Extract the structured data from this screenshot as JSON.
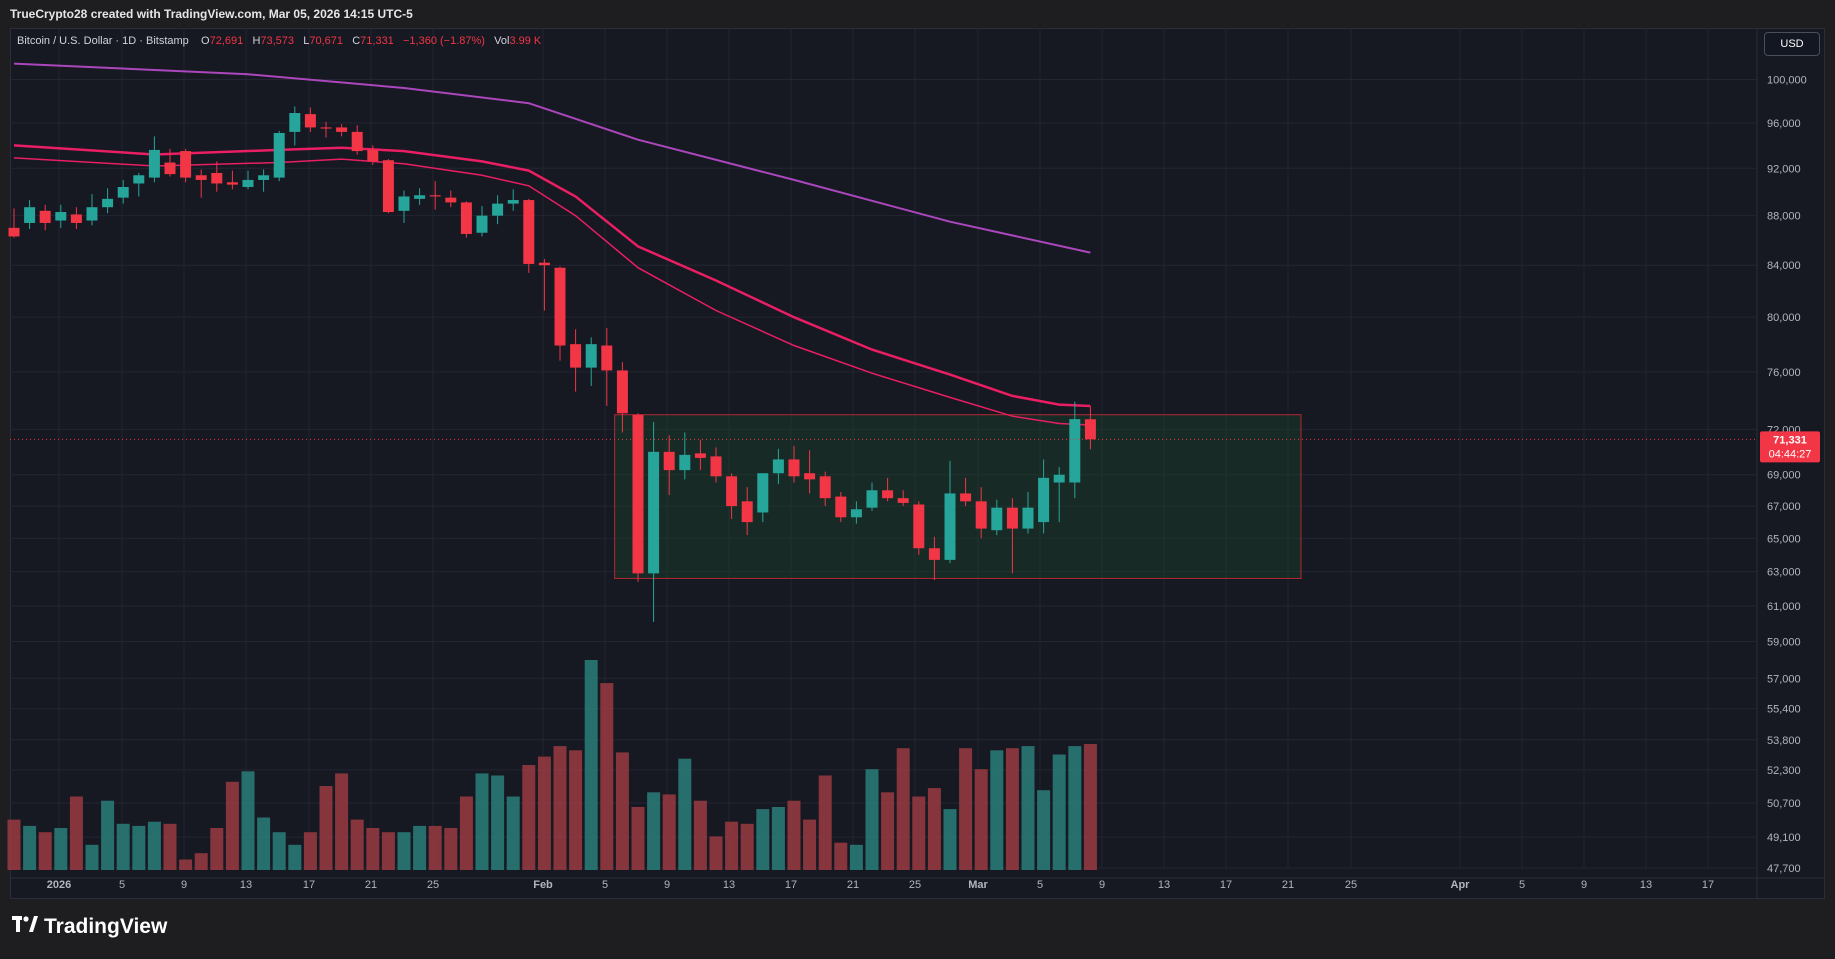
{
  "header": {
    "attribution": "TrueCrypto28 created with TradingView.com, Mar 05, 2026 14:15 UTC-5"
  },
  "legend": {
    "symbol": "Bitcoin / U.S. Dollar · 1D · Bitstamp",
    "o_label": "O",
    "o_value": "72,691",
    "h_label": "H",
    "h_value": "73,573",
    "l_label": "L",
    "l_value": "70,671",
    "c_label": "C",
    "c_value": "71,331",
    "change": "−1,360 (−1.87%)",
    "vol_label": "Vol",
    "vol_value": "3.99 K"
  },
  "currency_button": "USD",
  "footer": {
    "brand": "TradingView",
    "logo_icon": "tradingview-logo-icon"
  },
  "colors": {
    "up": "#26a69a",
    "down": "#f23645",
    "background": "#161822",
    "ema_fast": "#e91e63",
    "ema_slow": "#ab47bc",
    "box_fill": "#1c3a2a",
    "box_border": "#b22833"
  },
  "chart_data": {
    "type": "candlestick",
    "timeframe": "1D",
    "y_scale": "log",
    "ylim": [
      47700,
      103000
    ],
    "grid": true,
    "price_ticks": [
      "100,000",
      "96,000",
      "92,000",
      "88,000",
      "84,000",
      "80,000",
      "76,000",
      "72,000",
      "69,000",
      "67,000",
      "65,000",
      "63,000",
      "61,000",
      "59,000",
      "57,000",
      "55,400",
      "53,800",
      "52,300",
      "50,700",
      "49,100",
      "47,700"
    ],
    "date_ticks": [
      "2026",
      "5",
      "9",
      "13",
      "17",
      "21",
      "25",
      "Feb",
      "5",
      "9",
      "13",
      "17",
      "21",
      "25",
      "Mar",
      "5",
      "9",
      "13",
      "17",
      "21",
      "25",
      "Apr",
      "5",
      "9",
      "13",
      "17"
    ],
    "last_price": {
      "value": "71,331",
      "countdown": "04:44:27",
      "price": 71331
    },
    "candles": [
      {
        "o": 87000,
        "h": 88600,
        "l": 86200,
        "c": 86300
      },
      {
        "o": 87400,
        "h": 89300,
        "l": 86900,
        "c": 88700
      },
      {
        "o": 88400,
        "h": 88900,
        "l": 86800,
        "c": 87400
      },
      {
        "o": 87600,
        "h": 88900,
        "l": 87000,
        "c": 88300
      },
      {
        "o": 88100,
        "h": 88700,
        "l": 86900,
        "c": 87400
      },
      {
        "o": 87600,
        "h": 89800,
        "l": 87200,
        "c": 88700
      },
      {
        "o": 88700,
        "h": 90300,
        "l": 88200,
        "c": 89400
      },
      {
        "o": 89500,
        "h": 91000,
        "l": 89000,
        "c": 90400
      },
      {
        "o": 90700,
        "h": 91600,
        "l": 89600,
        "c": 91400
      },
      {
        "o": 91200,
        "h": 94800,
        "l": 90800,
        "c": 93600
      },
      {
        "o": 92500,
        "h": 93700,
        "l": 91300,
        "c": 91500
      },
      {
        "o": 93500,
        "h": 93700,
        "l": 90800,
        "c": 91200
      },
      {
        "o": 91400,
        "h": 91900,
        "l": 89500,
        "c": 91000
      },
      {
        "o": 91600,
        "h": 92600,
        "l": 90000,
        "c": 90700
      },
      {
        "o": 90800,
        "h": 91800,
        "l": 90200,
        "c": 90600
      },
      {
        "o": 90400,
        "h": 91800,
        "l": 90200,
        "c": 91000
      },
      {
        "o": 91000,
        "h": 91900,
        "l": 90000,
        "c": 91400
      },
      {
        "o": 91200,
        "h": 95300,
        "l": 90900,
        "c": 95100
      },
      {
        "o": 95200,
        "h": 97500,
        "l": 94000,
        "c": 96900
      },
      {
        "o": 96800,
        "h": 97400,
        "l": 95200,
        "c": 95600
      },
      {
        "o": 95600,
        "h": 96100,
        "l": 94700,
        "c": 95500
      },
      {
        "o": 95600,
        "h": 95900,
        "l": 94800,
        "c": 95200
      },
      {
        "o": 95200,
        "h": 95800,
        "l": 93200,
        "c": 93500
      },
      {
        "o": 93600,
        "h": 94000,
        "l": 92300,
        "c": 92600
      },
      {
        "o": 92700,
        "h": 92800,
        "l": 88200,
        "c": 88300
      },
      {
        "o": 88400,
        "h": 90100,
        "l": 87400,
        "c": 89600
      },
      {
        "o": 89400,
        "h": 90300,
        "l": 88900,
        "c": 89700
      },
      {
        "o": 89700,
        "h": 90900,
        "l": 88500,
        "c": 89600
      },
      {
        "o": 89500,
        "h": 90100,
        "l": 88700,
        "c": 89100
      },
      {
        "o": 89100,
        "h": 89200,
        "l": 86200,
        "c": 86500
      },
      {
        "o": 86600,
        "h": 88800,
        "l": 86300,
        "c": 88000
      },
      {
        "o": 88000,
        "h": 89700,
        "l": 87300,
        "c": 89000
      },
      {
        "o": 89000,
        "h": 90200,
        "l": 88400,
        "c": 89300
      },
      {
        "o": 89300,
        "h": 89400,
        "l": 83400,
        "c": 84100
      },
      {
        "o": 84200,
        "h": 84500,
        "l": 80500,
        "c": 84000
      },
      {
        "o": 83800,
        "h": 83900,
        "l": 76800,
        "c": 77900
      },
      {
        "o": 78000,
        "h": 79100,
        "l": 74600,
        "c": 76300
      },
      {
        "o": 76300,
        "h": 78500,
        "l": 75000,
        "c": 78000
      },
      {
        "o": 77900,
        "h": 79200,
        "l": 73600,
        "c": 76100
      },
      {
        "o": 76100,
        "h": 76700,
        "l": 71800,
        "c": 73100
      },
      {
        "o": 73000,
        "h": 73100,
        "l": 62400,
        "c": 62900
      },
      {
        "o": 62900,
        "h": 72500,
        "l": 60100,
        "c": 70500
      },
      {
        "o": 70500,
        "h": 71600,
        "l": 67700,
        "c": 69300
      },
      {
        "o": 69300,
        "h": 71800,
        "l": 68700,
        "c": 70300
      },
      {
        "o": 70400,
        "h": 71300,
        "l": 69300,
        "c": 70100
      },
      {
        "o": 70200,
        "h": 70800,
        "l": 68500,
        "c": 68900
      },
      {
        "o": 68900,
        "h": 69100,
        "l": 66200,
        "c": 67000
      },
      {
        "o": 67300,
        "h": 68200,
        "l": 65200,
        "c": 66000
      },
      {
        "o": 66600,
        "h": 68900,
        "l": 66000,
        "c": 69100
      },
      {
        "o": 69100,
        "h": 70700,
        "l": 68400,
        "c": 70000
      },
      {
        "o": 70000,
        "h": 70900,
        "l": 68500,
        "c": 68900
      },
      {
        "o": 69100,
        "h": 70600,
        "l": 67800,
        "c": 68700
      },
      {
        "o": 68900,
        "h": 69200,
        "l": 67000,
        "c": 67500
      },
      {
        "o": 67600,
        "h": 67900,
        "l": 66000,
        "c": 66300
      },
      {
        "o": 66300,
        "h": 67300,
        "l": 65900,
        "c": 66800
      },
      {
        "o": 66900,
        "h": 68500,
        "l": 66700,
        "c": 68000
      },
      {
        "o": 68000,
        "h": 68800,
        "l": 67300,
        "c": 67500
      },
      {
        "o": 67500,
        "h": 68000,
        "l": 67000,
        "c": 67200
      },
      {
        "o": 67100,
        "h": 67300,
        "l": 64000,
        "c": 64400
      },
      {
        "o": 64400,
        "h": 65100,
        "l": 62500,
        "c": 63700
      },
      {
        "o": 63700,
        "h": 69900,
        "l": 63500,
        "c": 67800
      },
      {
        "o": 67800,
        "h": 68800,
        "l": 67000,
        "c": 67300
      },
      {
        "o": 67300,
        "h": 68200,
        "l": 65000,
        "c": 65600
      },
      {
        "o": 65500,
        "h": 67400,
        "l": 65200,
        "c": 66900
      },
      {
        "o": 66900,
        "h": 67500,
        "l": 62900,
        "c": 65600
      },
      {
        "o": 65600,
        "h": 67900,
        "l": 65300,
        "c": 66900
      },
      {
        "o": 66000,
        "h": 70000,
        "l": 65300,
        "c": 68800
      },
      {
        "o": 68500,
        "h": 69500,
        "l": 66000,
        "c": 69000
      },
      {
        "o": 68500,
        "h": 73900,
        "l": 67500,
        "c": 72700
      },
      {
        "o": 72691,
        "h": 73573,
        "l": 70671,
        "c": 71331
      }
    ],
    "volume_relative": [
      24,
      21,
      18,
      20,
      35,
      12,
      33,
      22,
      21,
      23,
      22,
      5,
      8,
      20,
      42,
      47,
      25,
      18,
      12,
      18,
      40,
      46,
      24,
      20,
      18,
      18,
      21,
      21,
      20,
      35,
      46,
      45,
      35,
      50,
      54,
      59,
      57,
      100,
      89,
      56,
      30,
      37,
      36,
      53,
      33,
      16,
      23,
      22,
      29,
      30,
      33,
      24,
      45,
      13,
      12,
      48,
      37,
      58,
      35,
      39,
      29,
      58,
      48,
      57,
      58,
      59,
      38,
      55,
      59,
      60
    ],
    "ema_fast": [
      [
        0,
        92900
      ],
      [
        9,
        92200
      ],
      [
        17,
        92500
      ],
      [
        21,
        92800
      ],
      [
        25,
        92400
      ],
      [
        30,
        91400
      ],
      [
        33,
        90500
      ],
      [
        36,
        88000
      ],
      [
        40,
        83800
      ],
      [
        45,
        80500
      ],
      [
        50,
        77900
      ],
      [
        55,
        75900
      ],
      [
        60,
        74200
      ],
      [
        64,
        72900
      ],
      [
        67,
        72400
      ],
      [
        69,
        72300
      ]
    ],
    "ema_slow_upper": [
      [
        0,
        94000
      ],
      [
        9,
        93200
      ],
      [
        17,
        93600
      ],
      [
        21,
        93800
      ],
      [
        25,
        93500
      ],
      [
        30,
        92600
      ],
      [
        33,
        91800
      ],
      [
        36,
        89600
      ],
      [
        40,
        85500
      ],
      [
        45,
        82800
      ],
      [
        50,
        80000
      ],
      [
        55,
        77600
      ],
      [
        60,
        75800
      ],
      [
        64,
        74300
      ],
      [
        67,
        73700
      ],
      [
        69,
        73600
      ]
    ],
    "ema_200": [
      [
        0,
        101500
      ],
      [
        15,
        100500
      ],
      [
        25,
        99200
      ],
      [
        33,
        97800
      ],
      [
        40,
        94500
      ],
      [
        50,
        91000
      ],
      [
        60,
        87500
      ],
      [
        69,
        85000
      ]
    ],
    "box": {
      "start_candle": 38.5,
      "end_candle": 82.5,
      "top": 73000,
      "bottom": 62600
    }
  }
}
